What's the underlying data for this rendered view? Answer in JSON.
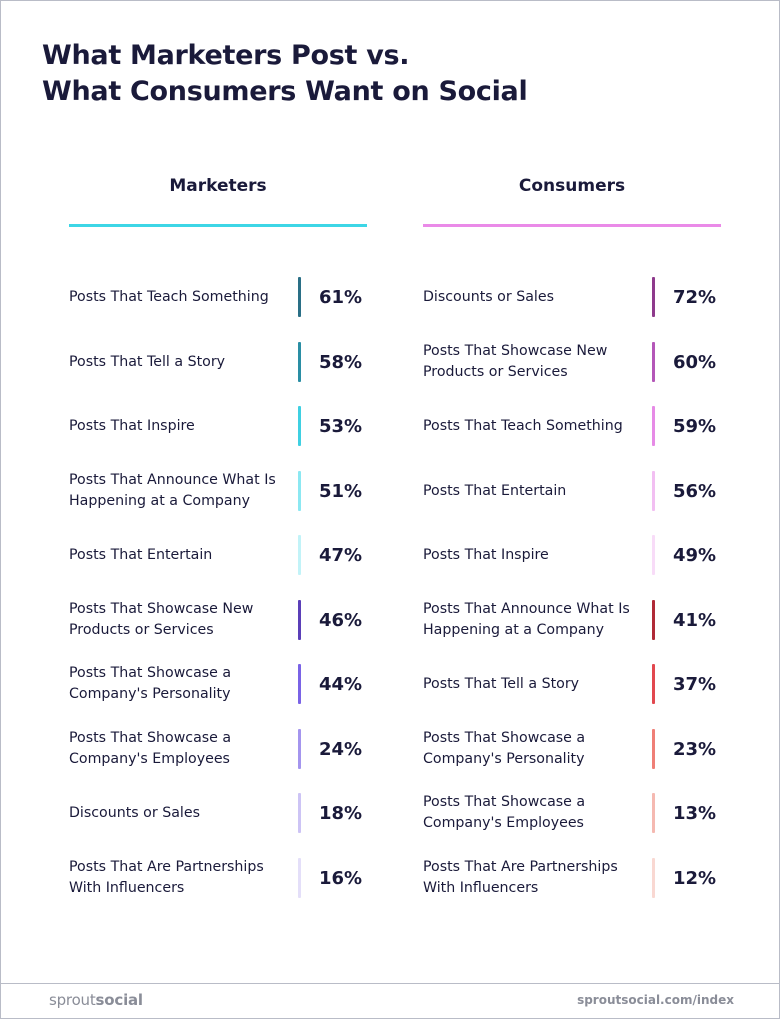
{
  "title": {
    "line1": "What Marketers Post vs.",
    "line2": "What Consumers Want on Social"
  },
  "chart_data": {
    "type": "table",
    "title": "What Marketers Post vs. What Consumers Want on Social",
    "unit": "%",
    "series": [
      {
        "name": "Marketers",
        "accent": "#3dd6e6",
        "items": [
          {
            "label": "Posts That Teach Something",
            "value": 61,
            "display": "61%",
            "color": "#2a6f86"
          },
          {
            "label": "Posts That Tell a Story",
            "value": 58,
            "display": "58%",
            "color": "#2a8ea4"
          },
          {
            "label": "Posts That Inspire",
            "value": 53,
            "display": "53%",
            "color": "#3fd0e2"
          },
          {
            "label": "Posts That Announce What Is Happening at a Company",
            "value": 51,
            "display": "51%",
            "color": "#8ce8f2"
          },
          {
            "label": "Posts That Entertain",
            "value": 47,
            "display": "47%",
            "color": "#c2f3f8"
          },
          {
            "label": "Posts That Showcase New Products or Services",
            "value": 46,
            "display": "46%",
            "color": "#5b3fb8"
          },
          {
            "label": "Posts That Showcase a Company's Personality",
            "value": 44,
            "display": "44%",
            "color": "#7a63e6"
          },
          {
            "label": "Posts That Showcase a Company's Employees",
            "value": 24,
            "display": "24%",
            "color": "#a495ee"
          },
          {
            "label": "Discounts or Sales",
            "value": 18,
            "display": "18%",
            "color": "#cdc4f5"
          },
          {
            "label": "Posts That Are Partnerships With Influencers",
            "value": 16,
            "display": "16%",
            "color": "#e4dff9"
          }
        ]
      },
      {
        "name": "Consumers",
        "accent": "#ea8ae8",
        "items": [
          {
            "label": "Discounts or Sales",
            "value": 72,
            "display": "72%",
            "color": "#8e3a8c"
          },
          {
            "label": "Posts That Showcase New Products or Services",
            "value": 60,
            "display": "60%",
            "color": "#b457b8"
          },
          {
            "label": "Posts That Teach Something",
            "value": 59,
            "display": "59%",
            "color": "#e68be6"
          },
          {
            "label": "Posts That Entertain",
            "value": 56,
            "display": "56%",
            "color": "#f2bff2"
          },
          {
            "label": "Posts That Inspire",
            "value": 49,
            "display": "49%",
            "color": "#f8dcf8"
          },
          {
            "label": "Posts That Announce What Is Happening at a Company",
            "value": 41,
            "display": "41%",
            "color": "#b02a37"
          },
          {
            "label": "Posts That Tell a Story",
            "value": 37,
            "display": "37%",
            "color": "#e2484f"
          },
          {
            "label": "Posts That Showcase a Company's Personality",
            "value": 23,
            "display": "23%",
            "color": "#ef7f77"
          },
          {
            "label": "Posts That Showcase a Company's Employees",
            "value": 13,
            "display": "13%",
            "color": "#f5b9b1"
          },
          {
            "label": "Posts That Are Partnerships With Influencers",
            "value": 12,
            "display": "12%",
            "color": "#f9d8d2"
          }
        ]
      }
    ]
  },
  "footer": {
    "logo_light": "sprout",
    "logo_bold": "social",
    "url": "sproutsocial.com/index"
  },
  "colors": {
    "text": "#1a1a3a",
    "footer_text": "#8a8d98",
    "border": "#b9bcc7"
  }
}
